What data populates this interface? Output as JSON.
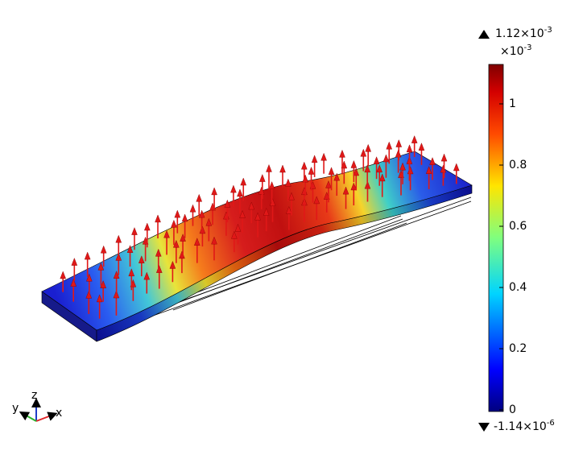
{
  "colorbar": {
    "max_label": {
      "mantissa": "1.12×10",
      "exponent": "-3"
    },
    "scale_label": {
      "base": "×10",
      "exponent": "-3"
    },
    "min_label": {
      "mantissa": "-1.14×10",
      "exponent": "-6"
    },
    "ticks": [
      "1",
      "0.8",
      "0.6",
      "0.4",
      "0.2",
      "0"
    ],
    "tick_values": [
      1.0,
      0.8,
      0.6,
      0.4,
      0.2,
      0.0
    ],
    "range": [
      -0.00114,
      1.12
    ],
    "colormap": "rainbow"
  },
  "axes_triad": {
    "x": "x",
    "y": "y",
    "z": "z",
    "colors": {
      "x": "#e0262a",
      "y": "#2bb32b",
      "z": "#1e3cc8"
    }
  },
  "arrow_color": "#e01818",
  "edge_color": "#000000"
}
